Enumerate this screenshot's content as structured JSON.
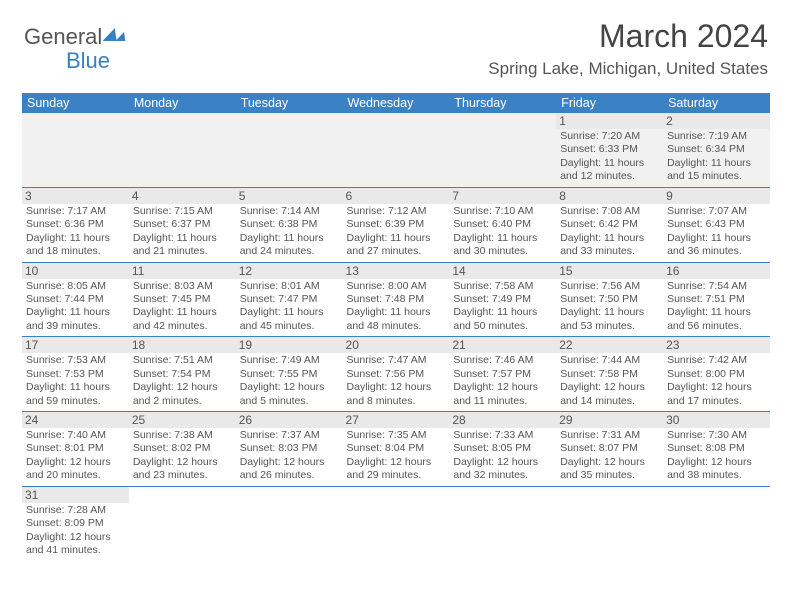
{
  "brand": {
    "part1": "General",
    "part2": "Blue"
  },
  "title": "March 2024",
  "location": "Spring Lake, Michigan, United States",
  "colors": {
    "header_bg": "#3b82c4",
    "header_fg": "#ffffff",
    "rule": "#3b82c4",
    "text": "#555555"
  },
  "daynames": [
    "Sunday",
    "Monday",
    "Tuesday",
    "Wednesday",
    "Thursday",
    "Friday",
    "Saturday"
  ],
  "weeks": [
    [
      null,
      null,
      null,
      null,
      null,
      {
        "n": "1",
        "sr": "Sunrise: 7:20 AM",
        "ss": "Sunset: 6:33 PM",
        "dl1": "Daylight: 11 hours",
        "dl2": "and 12 minutes."
      },
      {
        "n": "2",
        "sr": "Sunrise: 7:19 AM",
        "ss": "Sunset: 6:34 PM",
        "dl1": "Daylight: 11 hours",
        "dl2": "and 15 minutes."
      }
    ],
    [
      {
        "n": "3",
        "sr": "Sunrise: 7:17 AM",
        "ss": "Sunset: 6:36 PM",
        "dl1": "Daylight: 11 hours",
        "dl2": "and 18 minutes."
      },
      {
        "n": "4",
        "sr": "Sunrise: 7:15 AM",
        "ss": "Sunset: 6:37 PM",
        "dl1": "Daylight: 11 hours",
        "dl2": "and 21 minutes."
      },
      {
        "n": "5",
        "sr": "Sunrise: 7:14 AM",
        "ss": "Sunset: 6:38 PM",
        "dl1": "Daylight: 11 hours",
        "dl2": "and 24 minutes."
      },
      {
        "n": "6",
        "sr": "Sunrise: 7:12 AM",
        "ss": "Sunset: 6:39 PM",
        "dl1": "Daylight: 11 hours",
        "dl2": "and 27 minutes."
      },
      {
        "n": "7",
        "sr": "Sunrise: 7:10 AM",
        "ss": "Sunset: 6:40 PM",
        "dl1": "Daylight: 11 hours",
        "dl2": "and 30 minutes."
      },
      {
        "n": "8",
        "sr": "Sunrise: 7:08 AM",
        "ss": "Sunset: 6:42 PM",
        "dl1": "Daylight: 11 hours",
        "dl2": "and 33 minutes."
      },
      {
        "n": "9",
        "sr": "Sunrise: 7:07 AM",
        "ss": "Sunset: 6:43 PM",
        "dl1": "Daylight: 11 hours",
        "dl2": "and 36 minutes."
      }
    ],
    [
      {
        "n": "10",
        "sr": "Sunrise: 8:05 AM",
        "ss": "Sunset: 7:44 PM",
        "dl1": "Daylight: 11 hours",
        "dl2": "and 39 minutes."
      },
      {
        "n": "11",
        "sr": "Sunrise: 8:03 AM",
        "ss": "Sunset: 7:45 PM",
        "dl1": "Daylight: 11 hours",
        "dl2": "and 42 minutes."
      },
      {
        "n": "12",
        "sr": "Sunrise: 8:01 AM",
        "ss": "Sunset: 7:47 PM",
        "dl1": "Daylight: 11 hours",
        "dl2": "and 45 minutes."
      },
      {
        "n": "13",
        "sr": "Sunrise: 8:00 AM",
        "ss": "Sunset: 7:48 PM",
        "dl1": "Daylight: 11 hours",
        "dl2": "and 48 minutes."
      },
      {
        "n": "14",
        "sr": "Sunrise: 7:58 AM",
        "ss": "Sunset: 7:49 PM",
        "dl1": "Daylight: 11 hours",
        "dl2": "and 50 minutes."
      },
      {
        "n": "15",
        "sr": "Sunrise: 7:56 AM",
        "ss": "Sunset: 7:50 PM",
        "dl1": "Daylight: 11 hours",
        "dl2": "and 53 minutes."
      },
      {
        "n": "16",
        "sr": "Sunrise: 7:54 AM",
        "ss": "Sunset: 7:51 PM",
        "dl1": "Daylight: 11 hours",
        "dl2": "and 56 minutes."
      }
    ],
    [
      {
        "n": "17",
        "sr": "Sunrise: 7:53 AM",
        "ss": "Sunset: 7:53 PM",
        "dl1": "Daylight: 11 hours",
        "dl2": "and 59 minutes."
      },
      {
        "n": "18",
        "sr": "Sunrise: 7:51 AM",
        "ss": "Sunset: 7:54 PM",
        "dl1": "Daylight: 12 hours",
        "dl2": "and 2 minutes."
      },
      {
        "n": "19",
        "sr": "Sunrise: 7:49 AM",
        "ss": "Sunset: 7:55 PM",
        "dl1": "Daylight: 12 hours",
        "dl2": "and 5 minutes."
      },
      {
        "n": "20",
        "sr": "Sunrise: 7:47 AM",
        "ss": "Sunset: 7:56 PM",
        "dl1": "Daylight: 12 hours",
        "dl2": "and 8 minutes."
      },
      {
        "n": "21",
        "sr": "Sunrise: 7:46 AM",
        "ss": "Sunset: 7:57 PM",
        "dl1": "Daylight: 12 hours",
        "dl2": "and 11 minutes."
      },
      {
        "n": "22",
        "sr": "Sunrise: 7:44 AM",
        "ss": "Sunset: 7:58 PM",
        "dl1": "Daylight: 12 hours",
        "dl2": "and 14 minutes."
      },
      {
        "n": "23",
        "sr": "Sunrise: 7:42 AM",
        "ss": "Sunset: 8:00 PM",
        "dl1": "Daylight: 12 hours",
        "dl2": "and 17 minutes."
      }
    ],
    [
      {
        "n": "24",
        "sr": "Sunrise: 7:40 AM",
        "ss": "Sunset: 8:01 PM",
        "dl1": "Daylight: 12 hours",
        "dl2": "and 20 minutes."
      },
      {
        "n": "25",
        "sr": "Sunrise: 7:38 AM",
        "ss": "Sunset: 8:02 PM",
        "dl1": "Daylight: 12 hours",
        "dl2": "and 23 minutes."
      },
      {
        "n": "26",
        "sr": "Sunrise: 7:37 AM",
        "ss": "Sunset: 8:03 PM",
        "dl1": "Daylight: 12 hours",
        "dl2": "and 26 minutes."
      },
      {
        "n": "27",
        "sr": "Sunrise: 7:35 AM",
        "ss": "Sunset: 8:04 PM",
        "dl1": "Daylight: 12 hours",
        "dl2": "and 29 minutes."
      },
      {
        "n": "28",
        "sr": "Sunrise: 7:33 AM",
        "ss": "Sunset: 8:05 PM",
        "dl1": "Daylight: 12 hours",
        "dl2": "and 32 minutes."
      },
      {
        "n": "29",
        "sr": "Sunrise: 7:31 AM",
        "ss": "Sunset: 8:07 PM",
        "dl1": "Daylight: 12 hours",
        "dl2": "and 35 minutes."
      },
      {
        "n": "30",
        "sr": "Sunrise: 7:30 AM",
        "ss": "Sunset: 8:08 PM",
        "dl1": "Daylight: 12 hours",
        "dl2": "and 38 minutes."
      }
    ],
    [
      {
        "n": "31",
        "sr": "Sunrise: 7:28 AM",
        "ss": "Sunset: 8:09 PM",
        "dl1": "Daylight: 12 hours",
        "dl2": "and 41 minutes."
      },
      null,
      null,
      null,
      null,
      null,
      null
    ]
  ]
}
